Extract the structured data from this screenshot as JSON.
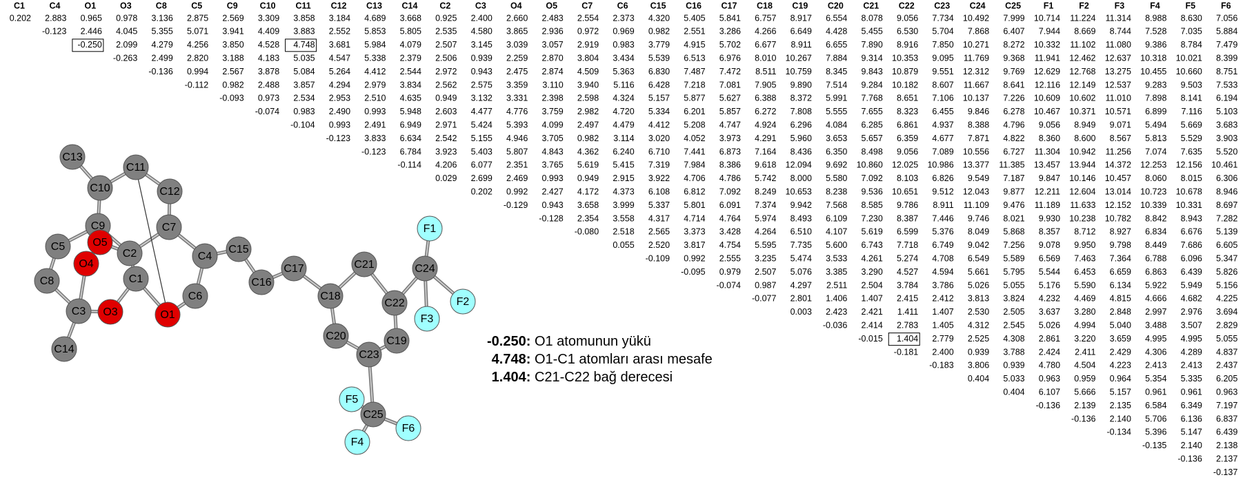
{
  "table": {
    "columns": [
      "C1",
      "C4",
      "O1",
      "O3",
      "C8",
      "C5",
      "C9",
      "C10",
      "C11",
      "C12",
      "C13",
      "C14",
      "C2",
      "C3",
      "O4",
      "O5",
      "C7",
      "C6",
      "C15",
      "C16",
      "C17",
      "C18",
      "C19",
      "C20",
      "C21",
      "C22",
      "C23",
      "C24",
      "C25",
      "F1",
      "F2",
      "F3",
      "F4",
      "F5",
      "F6"
    ],
    "rows": [
      [
        "0.202",
        "2.883",
        "0.965",
        "0.978",
        "3.136",
        "2.875",
        "2.569",
        "3.309",
        "3.858",
        "3.184",
        "4.689",
        "3.668",
        "0.925",
        "2.400",
        "2.660",
        "2.483",
        "2.554",
        "2.373",
        "4.320",
        "5.405",
        "5.841",
        "6.757",
        "8.917",
        "6.554",
        "8.078",
        "9.056",
        "7.734",
        "10.492",
        "7.999",
        "10.714",
        "11.224",
        "11.314",
        "8.988",
        "8.630",
        "7.056"
      ],
      [
        "-0.123",
        "2.446",
        "4.045",
        "5.355",
        "5.071",
        "3.941",
        "4.409",
        "3.883",
        "2.552",
        "5.853",
        "5.805",
        "2.535",
        "4.580",
        "3.865",
        "2.936",
        "0.972",
        "0.969",
        "0.982",
        "2.551",
        "3.286",
        "4.266",
        "6.649",
        "4.428",
        "5.455",
        "6.530",
        "5.704",
        "7.868",
        "6.407",
        "7.944",
        "8.669",
        "8.744",
        "7.528",
        "7.035",
        "5.884"
      ],
      [
        "-0.250",
        "2.099",
        "4.279",
        "4.256",
        "3.850",
        "4.528",
        "4.748",
        "3.681",
        "5.984",
        "4.079",
        "2.507",
        "3.145",
        "3.039",
        "3.057",
        "2.919",
        "0.983",
        "3.779",
        "4.915",
        "5.702",
        "6.677",
        "8.911",
        "6.655",
        "7.890",
        "8.916",
        "7.850",
        "10.271",
        "8.272",
        "10.332",
        "11.102",
        "11.080",
        "9.386",
        "8.784",
        "7.479"
      ],
      [
        "-0.263",
        "2.499",
        "2.820",
        "3.188",
        "4.183",
        "5.035",
        "4.547",
        "5.338",
        "2.379",
        "2.506",
        "0.939",
        "2.259",
        "2.870",
        "3.804",
        "3.434",
        "5.539",
        "6.513",
        "6.976",
        "8.010",
        "10.267",
        "7.884",
        "9.314",
        "10.353",
        "9.095",
        "11.769",
        "9.368",
        "11.941",
        "12.462",
        "12.637",
        "10.318",
        "10.021",
        "8.399"
      ],
      [
        "-0.136",
        "0.994",
        "2.567",
        "3.878",
        "5.084",
        "5.264",
        "4.412",
        "2.544",
        "2.972",
        "0.943",
        "2.475",
        "2.874",
        "4.509",
        "5.363",
        "6.830",
        "7.487",
        "7.472",
        "8.511",
        "10.759",
        "8.345",
        "9.843",
        "10.879",
        "9.551",
        "12.312",
        "9.769",
        "12.629",
        "12.768",
        "13.275",
        "10.455",
        "10.660",
        "8.751"
      ],
      [
        "-0.112",
        "0.982",
        "2.488",
        "3.857",
        "4.294",
        "2.979",
        "3.834",
        "2.562",
        "2.575",
        "3.359",
        "3.110",
        "3.940",
        "5.116",
        "6.428",
        "7.218",
        "7.081",
        "7.905",
        "9.890",
        "7.514",
        "9.284",
        "10.182",
        "8.607",
        "11.667",
        "8.641",
        "12.116",
        "12.149",
        "12.537",
        "9.283",
        "9.503",
        "7.533"
      ],
      [
        "-0.093",
        "0.973",
        "2.534",
        "2.953",
        "2.510",
        "4.635",
        "0.949",
        "3.132",
        "3.331",
        "2.398",
        "2.598",
        "4.324",
        "5.157",
        "5.877",
        "5.627",
        "6.388",
        "8.372",
        "5.991",
        "7.768",
        "8.651",
        "7.106",
        "10.137",
        "7.226",
        "10.609",
        "10.602",
        "11.010",
        "7.898",
        "8.141",
        "6.194"
      ],
      [
        "-0.074",
        "0.983",
        "2.490",
        "0.993",
        "5.948",
        "2.603",
        "4.477",
        "4.776",
        "3.759",
        "2.982",
        "4.720",
        "5.334",
        "6.201",
        "5.857",
        "6.272",
        "7.808",
        "5.555",
        "7.655",
        "8.323",
        "6.455",
        "9.846",
        "6.278",
        "10.467",
        "10.371",
        "10.571",
        "6.899",
        "7.116",
        "5.103"
      ],
      [
        "-0.104",
        "0.993",
        "2.491",
        "6.949",
        "2.971",
        "5.424",
        "5.393",
        "4.099",
        "2.497",
        "4.479",
        "4.412",
        "5.208",
        "4.747",
        "4.924",
        "6.296",
        "4.084",
        "6.285",
        "6.861",
        "4.937",
        "8.388",
        "4.796",
        "9.056",
        "8.949",
        "9.071",
        "5.494",
        "5.669",
        "3.683"
      ],
      [
        "-0.123",
        "3.833",
        "6.634",
        "2.542",
        "5.155",
        "4.946",
        "3.705",
        "0.982",
        "3.114",
        "3.020",
        "4.052",
        "3.973",
        "4.291",
        "5.960",
        "3.653",
        "5.657",
        "6.359",
        "4.677",
        "7.871",
        "4.822",
        "8.360",
        "8.600",
        "8.567",
        "5.813",
        "5.529",
        "3.903"
      ],
      [
        "-0.123",
        "6.784",
        "3.923",
        "5.403",
        "5.807",
        "4.843",
        "4.362",
        "6.240",
        "6.710",
        "7.441",
        "6.873",
        "7.164",
        "8.436",
        "6.350",
        "8.498",
        "9.056",
        "7.089",
        "10.556",
        "6.727",
        "11.304",
        "10.942",
        "11.256",
        "7.074",
        "7.635",
        "5.520"
      ],
      [
        "-0.114",
        "4.206",
        "6.077",
        "2.351",
        "3.765",
        "5.619",
        "5.415",
        "7.319",
        "7.984",
        "8.386",
        "9.618",
        "12.094",
        "9.692",
        "10.860",
        "12.025",
        "10.986",
        "13.377",
        "11.385",
        "13.457",
        "13.944",
        "14.372",
        "12.253",
        "12.156",
        "10.461"
      ],
      [
        "0.029",
        "2.699",
        "2.469",
        "0.993",
        "0.949",
        "2.915",
        "3.922",
        "4.706",
        "4.786",
        "5.742",
        "8.000",
        "5.580",
        "7.092",
        "8.103",
        "6.826",
        "9.549",
        "7.187",
        "9.847",
        "10.146",
        "10.457",
        "8.060",
        "8.015",
        "6.306"
      ],
      [
        "0.202",
        "0.992",
        "2.427",
        "4.172",
        "4.373",
        "6.108",
        "6.812",
        "7.092",
        "8.249",
        "10.653",
        "8.238",
        "9.536",
        "10.651",
        "9.512",
        "12.043",
        "9.877",
        "12.211",
        "12.604",
        "13.014",
        "10.723",
        "10.678",
        "8.946"
      ],
      [
        "-0.129",
        "0.943",
        "3.658",
        "3.999",
        "5.337",
        "5.801",
        "6.091",
        "7.374",
        "9.942",
        "7.568",
        "8.585",
        "9.786",
        "8.911",
        "11.109",
        "9.476",
        "11.189",
        "11.633",
        "12.152",
        "10.339",
        "10.331",
        "8.697"
      ],
      [
        "-0.128",
        "2.354",
        "3.558",
        "4.317",
        "4.714",
        "4.764",
        "5.974",
        "8.493",
        "6.109",
        "7.230",
        "8.387",
        "7.446",
        "9.746",
        "8.021",
        "9.930",
        "10.238",
        "10.782",
        "8.842",
        "8.943",
        "7.282"
      ],
      [
        "-0.080",
        "2.518",
        "2.565",
        "3.373",
        "3.428",
        "4.264",
        "6.510",
        "4.107",
        "5.619",
        "6.599",
        "5.376",
        "8.049",
        "5.868",
        "8.357",
        "8.712",
        "8.927",
        "6.834",
        "6.676",
        "5.139"
      ],
      [
        "0.055",
        "2.520",
        "3.817",
        "4.754",
        "5.595",
        "7.735",
        "5.600",
        "6.743",
        "7.718",
        "6.749",
        "9.042",
        "7.256",
        "9.078",
        "9.950",
        "9.798",
        "8.449",
        "7.686",
        "6.605"
      ],
      [
        "-0.109",
        "0.992",
        "2.555",
        "3.235",
        "5.474",
        "3.533",
        "4.261",
        "5.274",
        "4.708",
        "6.549",
        "5.589",
        "6.569",
        "7.463",
        "7.364",
        "6.788",
        "6.096",
        "5.347"
      ],
      [
        "-0.095",
        "0.979",
        "2.507",
        "5.076",
        "3.385",
        "3.290",
        "4.527",
        "4.594",
        "5.661",
        "5.795",
        "5.544",
        "6.453",
        "6.659",
        "6.863",
        "6.439",
        "5.826"
      ],
      [
        "-0.074",
        "0.987",
        "4.297",
        "2.511",
        "2.504",
        "3.784",
        "3.786",
        "5.026",
        "5.055",
        "5.176",
        "5.590",
        "6.134",
        "5.922",
        "5.949",
        "5.156"
      ],
      [
        "-0.077",
        "2.801",
        "1.406",
        "1.407",
        "2.415",
        "2.412",
        "3.813",
        "3.824",
        "4.232",
        "4.469",
        "4.815",
        "4.666",
        "4.682",
        "4.225"
      ],
      [
        "0.003",
        "2.423",
        "2.421",
        "1.411",
        "1.407",
        "2.530",
        "2.505",
        "3.637",
        "3.280",
        "2.848",
        "2.997",
        "2.976",
        "3.694"
      ],
      [
        "-0.036",
        "2.414",
        "2.783",
        "1.405",
        "4.312",
        "2.545",
        "5.026",
        "4.994",
        "5.040",
        "3.488",
        "3.507",
        "2.829"
      ],
      [
        "-0.015",
        "1.404",
        "2.779",
        "2.525",
        "4.308",
        "2.861",
        "3.220",
        "3.659",
        "4.995",
        "4.995",
        "5.055"
      ],
      [
        "-0.181",
        "2.400",
        "0.939",
        "3.788",
        "2.424",
        "2.411",
        "2.429",
        "4.306",
        "4.289",
        "4.837"
      ],
      [
        "-0.183",
        "3.806",
        "0.939",
        "4.780",
        "4.504",
        "4.223",
        "2.413",
        "2.413",
        "2.437"
      ],
      [
        "0.404",
        "5.033",
        "0.963",
        "0.959",
        "0.964",
        "5.354",
        "5.335",
        "6.205"
      ],
      [
        "0.404",
        "6.107",
        "5.666",
        "5.157",
        "0.961",
        "0.961",
        "0.963"
      ],
      [
        "-0.136",
        "2.139",
        "2.135",
        "6.584",
        "6.349",
        "7.197"
      ],
      [
        "-0.136",
        "2.140",
        "5.706",
        "6.136",
        "6.837"
      ],
      [
        "-0.134",
        "5.396",
        "5.147",
        "6.439"
      ],
      [
        "-0.135",
        "2.140",
        "2.138"
      ],
      [
        "-0.136",
        "2.137"
      ],
      [
        "-0.137"
      ]
    ],
    "boxed_cells": [
      [
        2,
        0
      ],
      [
        2,
        6
      ],
      [
        24,
        1
      ]
    ]
  },
  "molecule": {
    "atoms": [
      {
        "label": "C13",
        "color": "#808080"
      },
      {
        "label": "C11",
        "color": "#808080"
      },
      {
        "label": "C10",
        "color": "#808080"
      },
      {
        "label": "C12",
        "color": "#808080"
      },
      {
        "label": "C9",
        "color": "#808080"
      },
      {
        "label": "C7",
        "color": "#808080"
      },
      {
        "label": "C5",
        "color": "#808080"
      },
      {
        "label": "O5",
        "color": "#e00000"
      },
      {
        "label": "C2",
        "color": "#808080"
      },
      {
        "label": "C4",
        "color": "#808080"
      },
      {
        "label": "C15",
        "color": "#808080"
      },
      {
        "label": "C8",
        "color": "#808080"
      },
      {
        "label": "O4",
        "color": "#e00000"
      },
      {
        "label": "C1",
        "color": "#808080"
      },
      {
        "label": "C6",
        "color": "#808080"
      },
      {
        "label": "C17",
        "color": "#808080"
      },
      {
        "label": "C16",
        "color": "#808080"
      },
      {
        "label": "C21",
        "color": "#808080"
      },
      {
        "label": "F1",
        "color": "#a0ffff"
      },
      {
        "label": "C24",
        "color": "#808080"
      },
      {
        "label": "C18",
        "color": "#808080"
      },
      {
        "label": "C22",
        "color": "#808080"
      },
      {
        "label": "F2",
        "color": "#a0ffff"
      },
      {
        "label": "F3",
        "color": "#a0ffff"
      },
      {
        "label": "C3",
        "color": "#808080"
      },
      {
        "label": "O3",
        "color": "#e00000"
      },
      {
        "label": "O1",
        "color": "#e00000"
      },
      {
        "label": "C20",
        "color": "#808080"
      },
      {
        "label": "C19",
        "color": "#808080"
      },
      {
        "label": "C23",
        "color": "#808080"
      },
      {
        "label": "C14",
        "color": "#808080"
      },
      {
        "label": "C25",
        "color": "#808080"
      },
      {
        "label": "F5",
        "color": "#a0ffff"
      },
      {
        "label": "F6",
        "color": "#a0ffff"
      },
      {
        "label": "F4",
        "color": "#a0ffff"
      }
    ]
  },
  "legend": [
    {
      "value": "-0.250:",
      "text": "O1 atomunun yükü"
    },
    {
      "value": "4.748:",
      "text": "O1-C1 atomları arası mesafe"
    },
    {
      "value": "1.404:",
      "text": "C21-C22 bağ derecesi"
    }
  ]
}
